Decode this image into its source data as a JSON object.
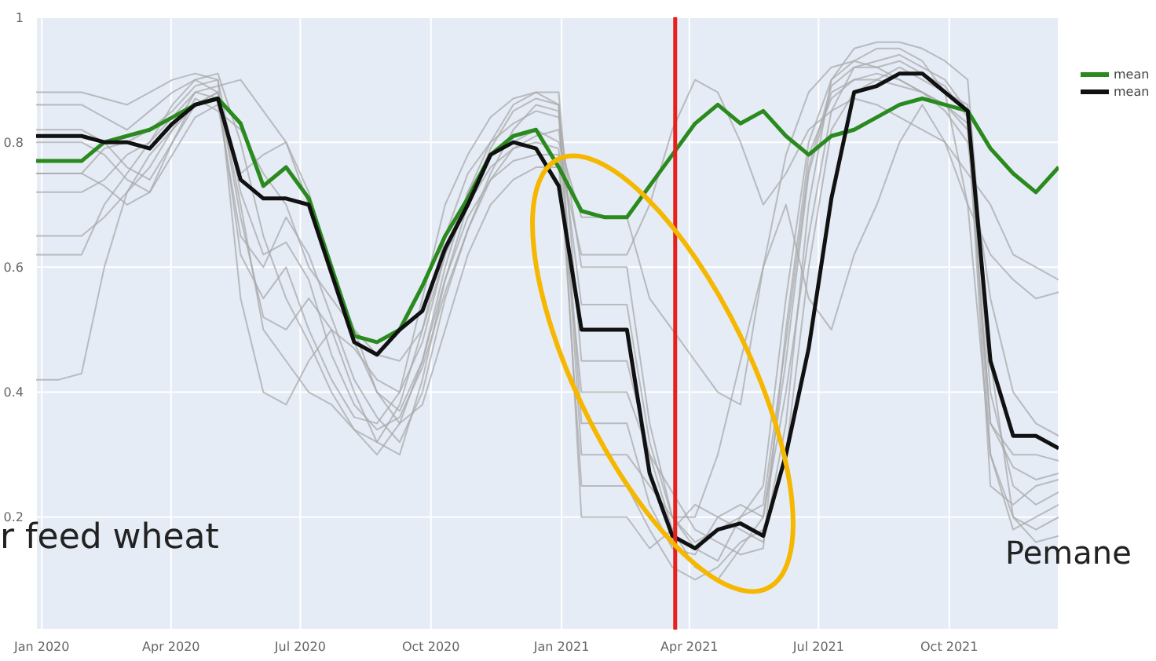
{
  "chart_data": {
    "type": "line",
    "x": [
      "2019-12-28",
      "2020-01-13",
      "2020-01-29",
      "2020-02-14",
      "2020-03-01",
      "2020-03-17",
      "2020-04-02",
      "2020-04-18",
      "2020-05-04",
      "2020-05-20",
      "2020-06-05",
      "2020-06-21",
      "2020-07-07",
      "2020-07-23",
      "2020-08-08",
      "2020-08-24",
      "2020-09-09",
      "2020-09-25",
      "2020-10-11",
      "2020-10-27",
      "2020-11-12",
      "2020-11-28",
      "2020-12-14",
      "2020-12-30",
      "2021-01-15",
      "2021-01-31",
      "2021-02-16",
      "2021-03-04",
      "2021-03-20",
      "2021-04-05",
      "2021-04-21",
      "2021-05-07",
      "2021-05-23",
      "2021-06-08",
      "2021-06-24",
      "2021-07-10",
      "2021-07-26",
      "2021-08-11",
      "2021-08-27",
      "2021-09-12",
      "2021-09-28",
      "2021-10-14",
      "2021-10-30",
      "2021-11-15",
      "2021-12-01",
      "2021-12-17"
    ],
    "xlim": [
      "2019-12-28",
      "2021-12-17"
    ],
    "xticks": [
      {
        "value": "2020-01-01",
        "label": "Jan 2020"
      },
      {
        "value": "2020-04-01",
        "label": "Apr 2020"
      },
      {
        "value": "2020-07-01",
        "label": "Jul 2020"
      },
      {
        "value": "2020-10-01",
        "label": "Oct 2020"
      },
      {
        "value": "2021-01-01",
        "label": "Jan 2021"
      },
      {
        "value": "2021-04-01",
        "label": "Apr 2021"
      },
      {
        "value": "2021-07-01",
        "label": "Jul 2021"
      },
      {
        "value": "2021-10-01",
        "label": "Oct 2021"
      }
    ],
    "ylim": [
      0.02,
      1
    ],
    "yticks": [
      0.2,
      0.4,
      0.6,
      0.8,
      1
    ],
    "grid": true,
    "legend": "top right",
    "series": [
      {
        "color": "#aaaaaa",
        "values": [
          0.86,
          0.86,
          0.86,
          0.84,
          0.82,
          0.85,
          0.88,
          0.9,
          0.88,
          0.62,
          0.55,
          0.6,
          0.5,
          0.42,
          0.36,
          0.35,
          0.4,
          0.55,
          0.7,
          0.78,
          0.84,
          0.87,
          0.88,
          0.86,
          0.35,
          0.35,
          0.35,
          0.22,
          0.15,
          0.14,
          0.2,
          0.22,
          0.2,
          0.4,
          0.65,
          0.85,
          0.92,
          0.93,
          0.94,
          0.92,
          0.9,
          0.85,
          0.4,
          0.25,
          0.22,
          0.24
        ]
      },
      {
        "color": "#aaaaaa",
        "values": [
          0.62,
          0.62,
          0.62,
          0.7,
          0.75,
          0.8,
          0.86,
          0.9,
          0.91,
          0.8,
          0.65,
          0.55,
          0.48,
          0.4,
          0.34,
          0.32,
          0.38,
          0.5,
          0.65,
          0.75,
          0.8,
          0.83,
          0.85,
          0.84,
          0.6,
          0.6,
          0.6,
          0.35,
          0.2,
          0.15,
          0.13,
          0.2,
          0.25,
          0.55,
          0.8,
          0.9,
          0.93,
          0.95,
          0.95,
          0.93,
          0.88,
          0.7,
          0.3,
          0.2,
          0.18,
          0.2
        ]
      },
      {
        "color": "#aaaaaa",
        "values": [
          0.42,
          0.42,
          0.43,
          0.6,
          0.72,
          0.78,
          0.82,
          0.86,
          0.88,
          0.7,
          0.5,
          0.45,
          0.4,
          0.38,
          0.34,
          0.3,
          0.35,
          0.45,
          0.6,
          0.72,
          0.8,
          0.86,
          0.88,
          0.88,
          0.45,
          0.45,
          0.45,
          0.3,
          0.18,
          0.12,
          0.1,
          0.15,
          0.2,
          0.45,
          0.75,
          0.88,
          0.9,
          0.91,
          0.9,
          0.88,
          0.86,
          0.83,
          0.35,
          0.28,
          0.26,
          0.27
        ]
      },
      {
        "color": "#aaaaaa",
        "values": [
          0.8,
          0.8,
          0.8,
          0.78,
          0.74,
          0.72,
          0.8,
          0.87,
          0.85,
          0.82,
          0.75,
          0.7,
          0.6,
          0.55,
          0.5,
          0.46,
          0.45,
          0.5,
          0.62,
          0.72,
          0.78,
          0.8,
          0.82,
          0.8,
          0.68,
          0.68,
          0.68,
          0.55,
          0.5,
          0.45,
          0.4,
          0.38,
          0.6,
          0.78,
          0.88,
          0.92,
          0.93,
          0.92,
          0.9,
          0.88,
          0.85,
          0.8,
          0.55,
          0.4,
          0.35,
          0.33
        ]
      },
      {
        "color": "#aaaaaa",
        "values": [
          0.88,
          0.88,
          0.88,
          0.87,
          0.86,
          0.88,
          0.9,
          0.91,
          0.9,
          0.55,
          0.4,
          0.38,
          0.45,
          0.5,
          0.47,
          0.42,
          0.4,
          0.48,
          0.62,
          0.7,
          0.76,
          0.79,
          0.8,
          0.79,
          0.25,
          0.25,
          0.25,
          0.18,
          0.12,
          0.1,
          0.12,
          0.16,
          0.18,
          0.3,
          0.6,
          0.82,
          0.88,
          0.9,
          0.92,
          0.9,
          0.88,
          0.86,
          0.3,
          0.18,
          0.2,
          0.22
        ]
      },
      {
        "color": "#aaaaaa",
        "values": [
          0.65,
          0.65,
          0.65,
          0.68,
          0.72,
          0.76,
          0.82,
          0.88,
          0.89,
          0.9,
          0.85,
          0.8,
          0.7,
          0.6,
          0.5,
          0.4,
          0.37,
          0.45,
          0.58,
          0.68,
          0.74,
          0.77,
          0.78,
          0.78,
          0.62,
          0.62,
          0.62,
          0.7,
          0.82,
          0.9,
          0.88,
          0.8,
          0.7,
          0.75,
          0.82,
          0.85,
          0.87,
          0.86,
          0.84,
          0.82,
          0.8,
          0.75,
          0.7,
          0.62,
          0.6,
          0.58
        ]
      },
      {
        "color": "#aaaaaa",
        "values": [
          0.75,
          0.75,
          0.75,
          0.73,
          0.7,
          0.72,
          0.78,
          0.84,
          0.86,
          0.65,
          0.6,
          0.68,
          0.62,
          0.52,
          0.42,
          0.36,
          0.32,
          0.4,
          0.55,
          0.66,
          0.75,
          0.82,
          0.86,
          0.85,
          0.2,
          0.2,
          0.2,
          0.15,
          0.18,
          0.22,
          0.2,
          0.18,
          0.16,
          0.35,
          0.7,
          0.9,
          0.95,
          0.96,
          0.96,
          0.95,
          0.93,
          0.9,
          0.45,
          0.2,
          0.16,
          0.17
        ]
      },
      {
        "color": "#aaaaaa",
        "values": [
          0.72,
          0.72,
          0.72,
          0.74,
          0.78,
          0.8,
          0.84,
          0.88,
          0.87,
          0.75,
          0.78,
          0.8,
          0.72,
          0.6,
          0.48,
          0.4,
          0.35,
          0.38,
          0.5,
          0.62,
          0.7,
          0.74,
          0.76,
          0.76,
          0.4,
          0.4,
          0.4,
          0.3,
          0.24,
          0.18,
          0.16,
          0.14,
          0.15,
          0.5,
          0.78,
          0.87,
          0.9,
          0.9,
          0.89,
          0.88,
          0.86,
          0.82,
          0.35,
          0.3,
          0.3,
          0.29
        ]
      },
      {
        "color": "#aaaaaa",
        "values": [
          0.82,
          0.82,
          0.82,
          0.8,
          0.76,
          0.74,
          0.8,
          0.86,
          0.88,
          0.68,
          0.52,
          0.5,
          0.55,
          0.5,
          0.4,
          0.32,
          0.3,
          0.42,
          0.58,
          0.7,
          0.79,
          0.85,
          0.87,
          0.86,
          0.3,
          0.3,
          0.3,
          0.25,
          0.2,
          0.2,
          0.3,
          0.45,
          0.6,
          0.7,
          0.55,
          0.5,
          0.62,
          0.7,
          0.8,
          0.86,
          0.8,
          0.7,
          0.62,
          0.58,
          0.55,
          0.56
        ]
      },
      {
        "color": "#aaaaaa",
        "values": [
          0.75,
          0.75,
          0.75,
          0.79,
          0.8,
          0.82,
          0.85,
          0.89,
          0.9,
          0.72,
          0.62,
          0.64,
          0.58,
          0.46,
          0.38,
          0.34,
          0.36,
          0.44,
          0.56,
          0.66,
          0.74,
          0.79,
          0.81,
          0.82,
          0.54,
          0.54,
          0.54,
          0.32,
          0.2,
          0.16,
          0.18,
          0.2,
          0.22,
          0.48,
          0.76,
          0.89,
          0.92,
          0.92,
          0.93,
          0.91,
          0.89,
          0.84,
          0.25,
          0.22,
          0.25,
          0.26
        ]
      },
      {
        "name": "mean",
        "color": "#2a8a1e",
        "values": [
          0.77,
          0.77,
          0.77,
          0.8,
          0.81,
          0.82,
          0.84,
          0.86,
          0.87,
          0.83,
          0.73,
          0.76,
          0.71,
          0.6,
          0.49,
          0.48,
          0.5,
          0.57,
          0.65,
          0.71,
          0.78,
          0.81,
          0.82,
          0.76,
          0.69,
          0.68,
          0.68,
          0.73,
          0.78,
          0.83,
          0.86,
          0.83,
          0.85,
          0.81,
          0.78,
          0.81,
          0.82,
          0.84,
          0.86,
          0.87,
          0.86,
          0.85,
          0.79,
          0.75,
          0.72,
          0.76
        ]
      },
      {
        "name": "mean",
        "color": "#111111",
        "values": [
          0.81,
          0.81,
          0.81,
          0.8,
          0.8,
          0.79,
          0.83,
          0.86,
          0.87,
          0.74,
          0.71,
          0.71,
          0.7,
          0.59,
          0.48,
          0.46,
          0.5,
          0.53,
          0.63,
          0.7,
          0.78,
          0.8,
          0.79,
          0.73,
          0.5,
          0.5,
          0.5,
          0.27,
          0.17,
          0.15,
          0.18,
          0.19,
          0.17,
          0.3,
          0.47,
          0.71,
          0.88,
          0.89,
          0.91,
          0.91,
          0.88,
          0.85,
          0.45,
          0.33,
          0.33,
          0.31
        ]
      }
    ],
    "ref_lines": [
      {
        "axis": "x",
        "value": "2021-03-22",
        "color": "#e8201c"
      }
    ],
    "annotations": [
      "r feed wheat",
      "Pemane"
    ]
  }
}
